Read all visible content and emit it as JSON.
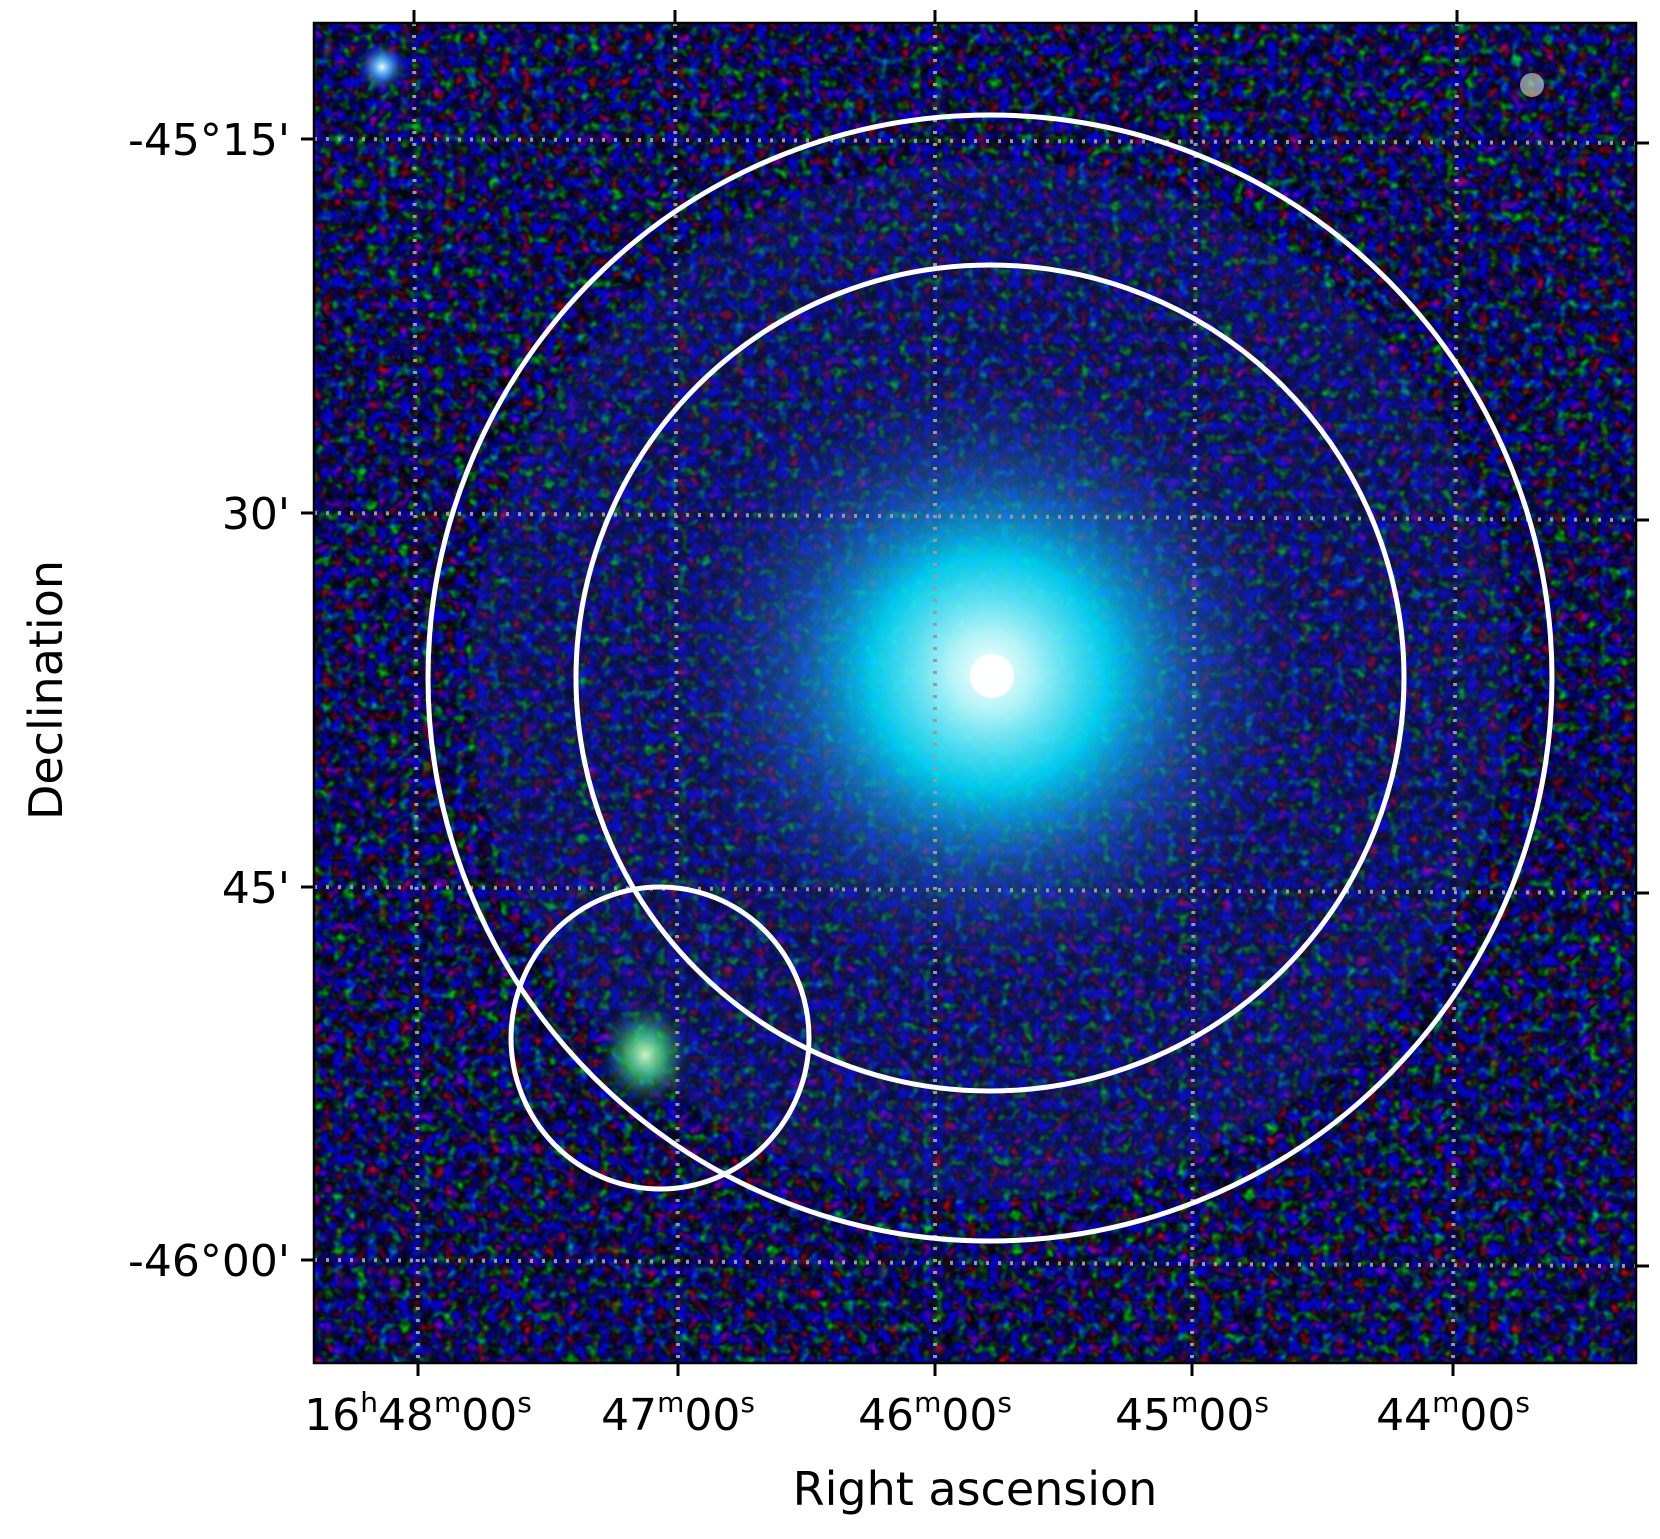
{
  "image": {
    "description_colors": {
      "background": "#0a0a3c",
      "emission_core": "#c8ffff",
      "emission_glow": "#00e5ff",
      "region_outline": "#ffffff",
      "grid": "#9a9a9a"
    }
  },
  "axes": {
    "xlabel": "Right ascension",
    "ylabel": "Declination",
    "x_ticks": [
      {
        "h": "16",
        "m": "48",
        "s": "00"
      },
      {
        "h": "",
        "m": "47",
        "s": "00"
      },
      {
        "h": "",
        "m": "46",
        "s": "00"
      },
      {
        "h": "",
        "m": "45",
        "s": "00"
      },
      {
        "h": "",
        "m": "44",
        "s": "00"
      }
    ],
    "y_ticks": [
      "-45°15'",
      "30'",
      "45'",
      "-46°00'"
    ]
  },
  "regions": [
    {
      "name": "outer-ring-region"
    },
    {
      "name": "inner-ring-region"
    },
    {
      "name": "offset-source-region"
    }
  ]
}
